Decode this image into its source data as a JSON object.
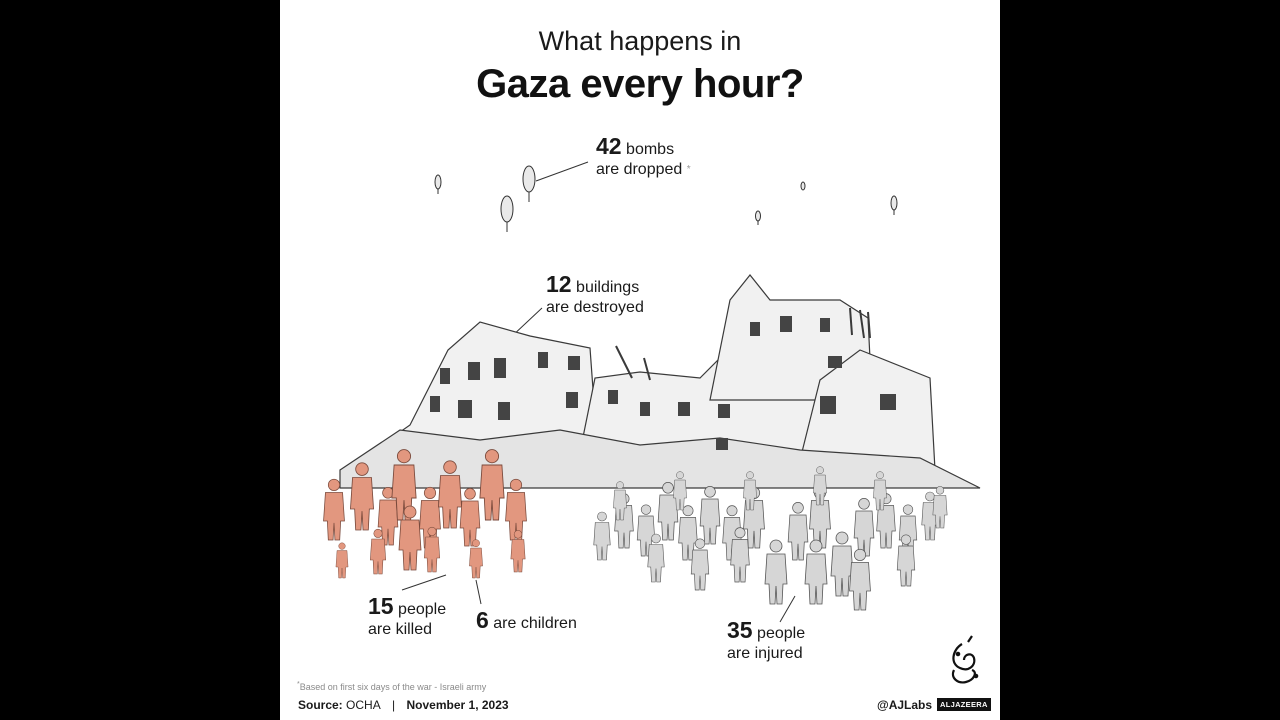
{
  "title": {
    "line1": "What happens in",
    "line2": "Gaza every hour?"
  },
  "stats": {
    "bombs": {
      "number": "42",
      "text1": "bombs",
      "text2": "are dropped",
      "marker": "*"
    },
    "buildings": {
      "number": "12",
      "text1": "buildings",
      "text2": "are destroyed"
    },
    "killed": {
      "number": "15",
      "text1": "people",
      "text2": "are killed"
    },
    "children": {
      "number": "6",
      "text1": "are children"
    },
    "injured": {
      "number": "35",
      "text1": "people",
      "text2": "are injured"
    }
  },
  "footnote": {
    "marker": "*",
    "text": "Based on first six days of the war - Israeli army"
  },
  "source": {
    "label": "Source:",
    "value": "OCHA",
    "separator": "|",
    "date": "November 1, 2023"
  },
  "credit": {
    "handle": "@AJLabs",
    "brand": "ALJAZEERA"
  },
  "colors": {
    "killed": "#e2977f",
    "injured": "#d6d6d6",
    "ink": "#2b2b2b",
    "background": "#ffffff",
    "frame": "#000000"
  },
  "icons": {
    "logo": "aljazeera-calligraphy-logo"
  }
}
